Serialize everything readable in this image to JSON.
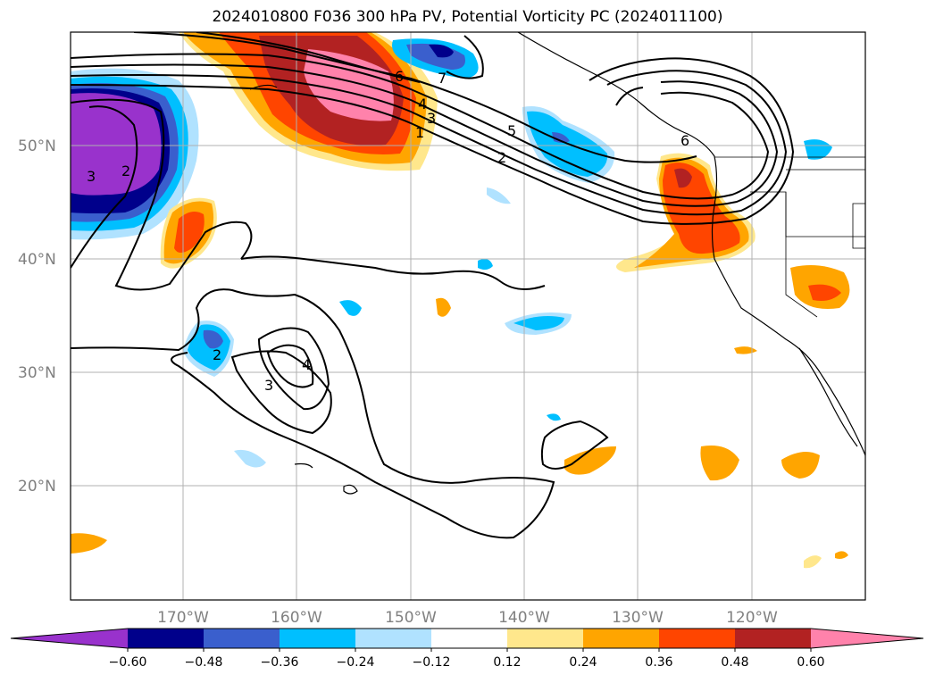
{
  "title": "2024010800 F036 300 hPa PV, Potential Vorticity PC (2024011100)",
  "map": {
    "lat_ticks": [
      "50°N",
      "40°N",
      "30°N",
      "20°N"
    ],
    "lon_ticks": [
      "170°W",
      "160°W",
      "150°W",
      "140°W",
      "130°W",
      "120°W"
    ],
    "contour_labels": [
      "1",
      "2",
      "3",
      "4",
      "5",
      "6",
      "7",
      "2",
      "3",
      "2",
      "3",
      "4",
      "6"
    ]
  },
  "colorbar": {
    "ticks": [
      "−0.60",
      "−0.48",
      "−0.36",
      "−0.24",
      "−0.12",
      "0.12",
      "0.24",
      "0.36",
      "0.48",
      "0.60"
    ],
    "colors": [
      "#9932cc",
      "#00008b",
      "#3a5fcd",
      "#00bfff",
      "#b0e2ff",
      "#ffffff",
      "#ffe78c",
      "#ffa500",
      "#ff4500",
      "#b22222",
      "#ff82ab"
    ]
  }
}
